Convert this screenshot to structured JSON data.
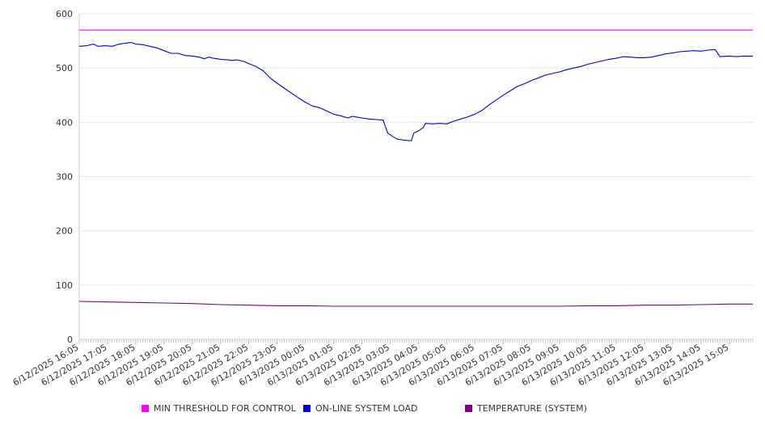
{
  "chart_data": {
    "type": "line",
    "ylim": [
      0,
      600
    ],
    "yticks": [
      0,
      100,
      200,
      300,
      400,
      500,
      600
    ],
    "grid": true,
    "legend_position": "bottom",
    "x_start": "6/12/2025 16:05",
    "x_end": "6/13/2025 15:55",
    "x_tick_labels": [
      "6/12/2025 16:05",
      "6/12/2025 17:05",
      "6/12/2025 18:05",
      "6/12/2025 19:05",
      "6/12/2025 20:05",
      "6/12/2025 21:05",
      "6/12/2025 22:05",
      "6/12/2025 23:05",
      "6/13/2025 00:05",
      "6/13/2025 01:05",
      "6/13/2025 02:05",
      "6/13/2025 03:05",
      "6/13/2025 04:05",
      "6/13/2025 05:05",
      "6/13/2025 06:05",
      "6/13/2025 07:05",
      "6/13/2025 08:05",
      "6/13/2025 09:05",
      "6/13/2025 10:05",
      "6/13/2025 11:05",
      "6/13/2025 12:05",
      "6/13/2025 13:05",
      "6/13/2025 14:05",
      "6/13/2025 15:05"
    ],
    "series": [
      {
        "name": "MIN THRESHOLD FOR CONTROL",
        "color": "#ff00ff",
        "points": [
          [
            "6/12/2025 16:05",
            570
          ],
          [
            "6/13/2025 15:55",
            570
          ]
        ]
      },
      {
        "name": "ON-LINE SYSTEM LOAD",
        "color": "#0000dd",
        "points": [
          [
            "6/12/2025 16:05",
            540
          ],
          [
            "6/12/2025 16:20",
            541
          ],
          [
            "6/12/2025 16:35",
            544
          ],
          [
            "6/12/2025 16:45",
            540
          ],
          [
            "6/12/2025 17:00",
            541
          ],
          [
            "6/12/2025 17:15",
            540
          ],
          [
            "6/12/2025 17:30",
            544
          ],
          [
            "6/12/2025 17:45",
            546
          ],
          [
            "6/12/2025 17:55",
            547
          ],
          [
            "6/12/2025 18:05",
            544
          ],
          [
            "6/12/2025 18:20",
            543
          ],
          [
            "6/12/2025 18:35",
            540
          ],
          [
            "6/12/2025 18:50",
            537
          ],
          [
            "6/12/2025 19:05",
            532
          ],
          [
            "6/12/2025 19:20",
            527
          ],
          [
            "6/12/2025 19:35",
            527
          ],
          [
            "6/12/2025 19:50",
            523
          ],
          [
            "6/12/2025 20:05",
            522
          ],
          [
            "6/12/2025 20:20",
            520
          ],
          [
            "6/12/2025 20:30",
            517
          ],
          [
            "6/12/2025 20:40",
            520
          ],
          [
            "6/12/2025 20:50",
            518
          ],
          [
            "6/12/2025 21:05",
            516
          ],
          [
            "6/12/2025 21:20",
            515
          ],
          [
            "6/12/2025 21:30",
            514
          ],
          [
            "6/12/2025 21:40",
            515
          ],
          [
            "6/12/2025 21:55",
            512
          ],
          [
            "6/12/2025 22:05",
            508
          ],
          [
            "6/12/2025 22:20",
            503
          ],
          [
            "6/12/2025 22:35",
            495
          ],
          [
            "6/12/2025 22:50",
            482
          ],
          [
            "6/12/2025 23:05",
            472
          ],
          [
            "6/12/2025 23:20",
            463
          ],
          [
            "6/12/2025 23:35",
            454
          ],
          [
            "6/12/2025 23:50",
            445
          ],
          [
            "6/13/2025 00:05",
            437
          ],
          [
            "6/13/2025 00:20",
            430
          ],
          [
            "6/13/2025 00:35",
            427
          ],
          [
            "6/13/2025 00:50",
            421
          ],
          [
            "6/13/2025 01:05",
            415
          ],
          [
            "6/13/2025 01:20",
            412
          ],
          [
            "6/13/2025 01:35",
            408
          ],
          [
            "6/13/2025 01:45",
            411
          ],
          [
            "6/13/2025 02:05",
            408
          ],
          [
            "6/13/2025 02:20",
            406
          ],
          [
            "6/13/2025 02:35",
            405
          ],
          [
            "6/13/2025 02:50",
            404
          ],
          [
            "6/13/2025 03:00",
            380
          ],
          [
            "6/13/2025 03:10",
            374
          ],
          [
            "6/13/2025 03:20",
            369
          ],
          [
            "6/13/2025 03:35",
            367
          ],
          [
            "6/13/2025 03:50",
            366
          ],
          [
            "6/13/2025 03:55",
            380
          ],
          [
            "6/13/2025 04:05",
            384
          ],
          [
            "6/13/2025 04:15",
            390
          ],
          [
            "6/13/2025 04:20",
            398
          ],
          [
            "6/13/2025 04:35",
            397
          ],
          [
            "6/13/2025 04:50",
            398
          ],
          [
            "6/13/2025 05:05",
            397
          ],
          [
            "6/13/2025 05:20",
            402
          ],
          [
            "6/13/2025 05:35",
            406
          ],
          [
            "6/13/2025 05:50",
            410
          ],
          [
            "6/13/2025 06:05",
            415
          ],
          [
            "6/13/2025 06:20",
            422
          ],
          [
            "6/13/2025 06:35",
            432
          ],
          [
            "6/13/2025 06:50",
            441
          ],
          [
            "6/13/2025 07:05",
            450
          ],
          [
            "6/13/2025 07:20",
            458
          ],
          [
            "6/13/2025 07:35",
            466
          ],
          [
            "6/13/2025 07:50",
            471
          ],
          [
            "6/13/2025 08:05",
            477
          ],
          [
            "6/13/2025 08:20",
            482
          ],
          [
            "6/13/2025 08:35",
            487
          ],
          [
            "6/13/2025 08:50",
            490
          ],
          [
            "6/13/2025 09:05",
            493
          ],
          [
            "6/13/2025 09:20",
            497
          ],
          [
            "6/13/2025 09:35",
            500
          ],
          [
            "6/13/2025 09:50",
            503
          ],
          [
            "6/13/2025 10:05",
            507
          ],
          [
            "6/13/2025 10:20",
            510
          ],
          [
            "6/13/2025 10:35",
            513
          ],
          [
            "6/13/2025 10:50",
            516
          ],
          [
            "6/13/2025 11:05",
            518
          ],
          [
            "6/13/2025 11:20",
            521
          ],
          [
            "6/13/2025 11:35",
            520
          ],
          [
            "6/13/2025 11:50",
            519
          ],
          [
            "6/13/2025 12:05",
            519
          ],
          [
            "6/13/2025 12:20",
            520
          ],
          [
            "6/13/2025 12:35",
            523
          ],
          [
            "6/13/2025 12:50",
            526
          ],
          [
            "6/13/2025 13:05",
            528
          ],
          [
            "6/13/2025 13:20",
            530
          ],
          [
            "6/13/2025 13:35",
            531
          ],
          [
            "6/13/2025 13:50",
            532
          ],
          [
            "6/13/2025 14:05",
            531
          ],
          [
            "6/13/2025 14:20",
            533
          ],
          [
            "6/13/2025 14:35",
            534
          ],
          [
            "6/13/2025 14:45",
            521
          ],
          [
            "6/13/2025 15:05",
            522
          ],
          [
            "6/13/2025 15:20",
            521
          ],
          [
            "6/13/2025 15:35",
            522
          ],
          [
            "6/13/2025 15:55",
            522
          ]
        ]
      },
      {
        "name": "TEMPERATURE (SYSTEM)",
        "color": "#800080",
        "points": [
          [
            "6/12/2025 16:05",
            70
          ],
          [
            "6/12/2025 17:05",
            69
          ],
          [
            "6/12/2025 18:05",
            68
          ],
          [
            "6/12/2025 19:05",
            67
          ],
          [
            "6/12/2025 20:05",
            66
          ],
          [
            "6/12/2025 21:05",
            64
          ],
          [
            "6/12/2025 22:05",
            63
          ],
          [
            "6/12/2025 23:05",
            62
          ],
          [
            "6/13/2025 00:05",
            62
          ],
          [
            "6/13/2025 01:05",
            61
          ],
          [
            "6/13/2025 02:05",
            61
          ],
          [
            "6/13/2025 03:05",
            61
          ],
          [
            "6/13/2025 04:05",
            61
          ],
          [
            "6/13/2025 05:05",
            61
          ],
          [
            "6/13/2025 06:05",
            61
          ],
          [
            "6/13/2025 07:05",
            61
          ],
          [
            "6/13/2025 08:05",
            61
          ],
          [
            "6/13/2025 09:05",
            61
          ],
          [
            "6/13/2025 10:05",
            62
          ],
          [
            "6/13/2025 11:05",
            62
          ],
          [
            "6/13/2025 12:05",
            63
          ],
          [
            "6/13/2025 13:05",
            63
          ],
          [
            "6/13/2025 14:05",
            64
          ],
          [
            "6/13/2025 15:05",
            65
          ],
          [
            "6/13/2025 15:55",
            65
          ]
        ]
      }
    ]
  }
}
